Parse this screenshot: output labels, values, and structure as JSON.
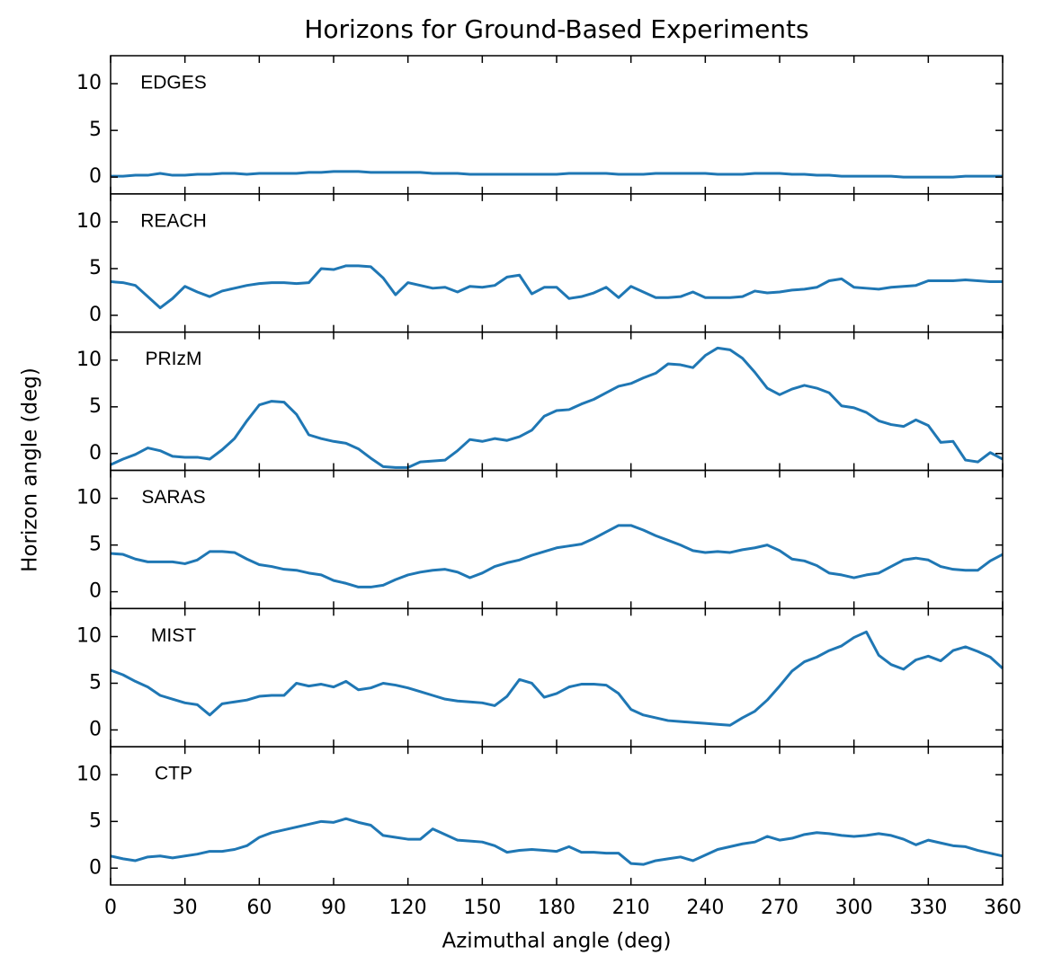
{
  "title": "Horizons for Ground-Based Experiments",
  "x_label": "Azimuthal angle (deg)",
  "y_label": "Horizon angle (deg)",
  "chart_data": [
    {
      "type": "line",
      "xlim": [
        0,
        360
      ],
      "ylim": [
        -1.8,
        13
      ],
      "xticks": [
        0,
        30,
        60,
        90,
        120,
        150,
        180,
        210,
        240,
        270,
        300,
        330,
        360
      ],
      "yticks": [
        0,
        5,
        10
      ],
      "x": [
        0,
        5,
        10,
        15,
        20,
        25,
        30,
        35,
        40,
        45,
        50,
        55,
        60,
        65,
        70,
        75,
        80,
        85,
        90,
        95,
        100,
        105,
        110,
        115,
        120,
        125,
        130,
        135,
        140,
        145,
        150,
        155,
        160,
        165,
        170,
        175,
        180,
        185,
        190,
        195,
        200,
        205,
        210,
        215,
        220,
        225,
        230,
        235,
        240,
        245,
        250,
        255,
        260,
        265,
        270,
        275,
        280,
        285,
        290,
        295,
        300,
        305,
        310,
        315,
        320,
        325,
        330,
        335,
        340,
        345,
        350,
        355,
        360
      ],
      "series": [
        {
          "name": "EDGES",
          "color": "#1f77b4",
          "values": [
            0.1,
            0.1,
            0.2,
            0.2,
            0.4,
            0.2,
            0.2,
            0.3,
            0.3,
            0.4,
            0.4,
            0.3,
            0.4,
            0.4,
            0.4,
            0.4,
            0.5,
            0.5,
            0.6,
            0.6,
            0.6,
            0.5,
            0.5,
            0.5,
            0.5,
            0.5,
            0.4,
            0.4,
            0.4,
            0.3,
            0.3,
            0.3,
            0.3,
            0.3,
            0.3,
            0.3,
            0.3,
            0.4,
            0.4,
            0.4,
            0.4,
            0.3,
            0.3,
            0.3,
            0.4,
            0.4,
            0.4,
            0.4,
            0.4,
            0.3,
            0.3,
            0.3,
            0.4,
            0.4,
            0.4,
            0.3,
            0.3,
            0.2,
            0.2,
            0.1,
            0.1,
            0.1,
            0.1,
            0.1,
            0.0,
            0.0,
            0.0,
            0.0,
            0.0,
            0.1,
            0.1,
            0.1,
            0.1
          ]
        }
      ]
    },
    {
      "type": "line",
      "xlim": [
        0,
        360
      ],
      "ylim": [
        -1.8,
        13
      ],
      "xticks": [
        0,
        30,
        60,
        90,
        120,
        150,
        180,
        210,
        240,
        270,
        300,
        330,
        360
      ],
      "yticks": [
        0,
        5,
        10
      ],
      "x": [
        0,
        5,
        10,
        15,
        20,
        25,
        30,
        35,
        40,
        45,
        50,
        55,
        60,
        65,
        70,
        75,
        80,
        85,
        90,
        95,
        100,
        105,
        110,
        115,
        120,
        125,
        130,
        135,
        140,
        145,
        150,
        155,
        160,
        165,
        170,
        175,
        180,
        185,
        190,
        195,
        200,
        205,
        210,
        215,
        220,
        225,
        230,
        235,
        240,
        245,
        250,
        255,
        260,
        265,
        270,
        275,
        280,
        285,
        290,
        295,
        300,
        305,
        310,
        315,
        320,
        325,
        330,
        335,
        340,
        345,
        350,
        355,
        360
      ],
      "series": [
        {
          "name": "REACH",
          "color": "#1f77b4",
          "values": [
            3.6,
            3.5,
            3.2,
            2.0,
            0.8,
            1.8,
            3.1,
            2.5,
            2.0,
            2.6,
            2.9,
            3.2,
            3.4,
            3.5,
            3.5,
            3.4,
            3.5,
            5.0,
            4.9,
            5.3,
            5.3,
            5.2,
            4.0,
            2.2,
            3.5,
            3.2,
            2.9,
            3.0,
            2.5,
            3.1,
            3.0,
            3.2,
            4.1,
            4.3,
            2.3,
            3.0,
            3.0,
            1.8,
            2.0,
            2.4,
            3.0,
            1.9,
            3.1,
            2.5,
            1.9,
            1.9,
            2.0,
            2.5,
            1.9,
            1.9,
            1.9,
            2.0,
            2.6,
            2.4,
            2.5,
            2.7,
            2.8,
            3.0,
            3.7,
            3.9,
            3.0,
            2.9,
            2.8,
            3.0,
            3.1,
            3.2,
            3.7,
            3.7,
            3.7,
            3.8,
            3.7,
            3.6,
            3.6
          ]
        }
      ]
    },
    {
      "type": "line",
      "xlim": [
        0,
        360
      ],
      "ylim": [
        -1.8,
        13
      ],
      "xticks": [
        0,
        30,
        60,
        90,
        120,
        150,
        180,
        210,
        240,
        270,
        300,
        330,
        360
      ],
      "yticks": [
        0,
        5,
        10
      ],
      "x": [
        0,
        5,
        10,
        15,
        20,
        25,
        30,
        35,
        40,
        45,
        50,
        55,
        60,
        65,
        70,
        75,
        80,
        85,
        90,
        95,
        100,
        105,
        110,
        115,
        120,
        125,
        130,
        135,
        140,
        145,
        150,
        155,
        160,
        165,
        170,
        175,
        180,
        185,
        190,
        195,
        200,
        205,
        210,
        215,
        220,
        225,
        230,
        235,
        240,
        245,
        250,
        255,
        260,
        265,
        270,
        275,
        280,
        285,
        290,
        295,
        300,
        305,
        310,
        315,
        320,
        325,
        330,
        335,
        340,
        345,
        350,
        355,
        360
      ],
      "series": [
        {
          "name": "PRIzM",
          "color": "#1f77b4",
          "values": [
            -1.2,
            -0.6,
            -0.1,
            0.6,
            0.3,
            -0.3,
            -0.4,
            -0.4,
            -0.6,
            0.4,
            1.6,
            3.5,
            5.2,
            5.6,
            5.5,
            4.2,
            2.0,
            1.6,
            1.3,
            1.1,
            0.5,
            -0.5,
            -1.4,
            -1.5,
            -1.5,
            -0.9,
            -0.8,
            -0.7,
            0.3,
            1.5,
            1.3,
            1.6,
            1.4,
            1.8,
            2.5,
            4.0,
            4.6,
            4.7,
            5.3,
            5.8,
            6.5,
            7.2,
            7.5,
            8.1,
            8.6,
            9.6,
            9.5,
            9.2,
            10.5,
            11.3,
            11.1,
            10.2,
            8.7,
            7.0,
            6.3,
            6.9,
            7.3,
            7.0,
            6.5,
            5.1,
            4.9,
            4.4,
            3.5,
            3.1,
            2.9,
            3.6,
            3.0,
            1.2,
            1.3,
            -0.7,
            -0.9,
            0.1,
            -0.6
          ]
        }
      ]
    },
    {
      "type": "line",
      "xlim": [
        0,
        360
      ],
      "ylim": [
        -1.8,
        13
      ],
      "xticks": [
        0,
        30,
        60,
        90,
        120,
        150,
        180,
        210,
        240,
        270,
        300,
        330,
        360
      ],
      "yticks": [
        0,
        5,
        10
      ],
      "x": [
        0,
        5,
        10,
        15,
        20,
        25,
        30,
        35,
        40,
        45,
        50,
        55,
        60,
        65,
        70,
        75,
        80,
        85,
        90,
        95,
        100,
        105,
        110,
        115,
        120,
        125,
        130,
        135,
        140,
        145,
        150,
        155,
        160,
        165,
        170,
        175,
        180,
        185,
        190,
        195,
        200,
        205,
        210,
        215,
        220,
        225,
        230,
        235,
        240,
        245,
        250,
        255,
        260,
        265,
        270,
        275,
        280,
        285,
        290,
        295,
        300,
        305,
        310,
        315,
        320,
        325,
        330,
        335,
        340,
        345,
        350,
        355,
        360
      ],
      "series": [
        {
          "name": "SARAS",
          "color": "#1f77b4",
          "values": [
            4.1,
            4.0,
            3.5,
            3.2,
            3.2,
            3.2,
            3.0,
            3.4,
            4.3,
            4.3,
            4.2,
            3.5,
            2.9,
            2.7,
            2.4,
            2.3,
            2.0,
            1.8,
            1.2,
            0.9,
            0.5,
            0.5,
            0.7,
            1.3,
            1.8,
            2.1,
            2.3,
            2.4,
            2.1,
            1.5,
            2.0,
            2.7,
            3.1,
            3.4,
            3.9,
            4.3,
            4.7,
            4.9,
            5.1,
            5.7,
            6.4,
            7.1,
            7.1,
            6.6,
            6.0,
            5.5,
            5.0,
            4.4,
            4.2,
            4.3,
            4.2,
            4.5,
            4.7,
            5.0,
            4.4,
            3.5,
            3.3,
            2.8,
            2.0,
            1.8,
            1.5,
            1.8,
            2.0,
            2.7,
            3.4,
            3.6,
            3.4,
            2.7,
            2.4,
            2.3,
            2.3,
            3.3,
            4.0
          ]
        }
      ]
    },
    {
      "type": "line",
      "xlim": [
        0,
        360
      ],
      "ylim": [
        -1.8,
        13
      ],
      "xticks": [
        0,
        30,
        60,
        90,
        120,
        150,
        180,
        210,
        240,
        270,
        300,
        330,
        360
      ],
      "yticks": [
        0,
        5,
        10
      ],
      "x": [
        0,
        5,
        10,
        15,
        20,
        25,
        30,
        35,
        40,
        45,
        50,
        55,
        60,
        65,
        70,
        75,
        80,
        85,
        90,
        95,
        100,
        105,
        110,
        115,
        120,
        125,
        130,
        135,
        140,
        145,
        150,
        155,
        160,
        165,
        170,
        175,
        180,
        185,
        190,
        195,
        200,
        205,
        210,
        215,
        220,
        225,
        230,
        235,
        240,
        245,
        250,
        255,
        260,
        265,
        270,
        275,
        280,
        285,
        290,
        295,
        300,
        305,
        310,
        315,
        320,
        325,
        330,
        335,
        340,
        345,
        350,
        355,
        360
      ],
      "series": [
        {
          "name": "MIST",
          "color": "#1f77b4",
          "values": [
            6.4,
            5.9,
            5.2,
            4.6,
            3.7,
            3.3,
            2.9,
            2.7,
            1.6,
            2.8,
            3.0,
            3.2,
            3.6,
            3.7,
            3.7,
            5.0,
            4.7,
            4.9,
            4.6,
            5.2,
            4.3,
            4.5,
            5.0,
            4.8,
            4.5,
            4.1,
            3.7,
            3.3,
            3.1,
            3.0,
            2.9,
            2.6,
            3.6,
            5.4,
            5.0,
            3.5,
            3.9,
            4.6,
            4.9,
            4.9,
            4.8,
            3.9,
            2.2,
            1.6,
            1.3,
            1.0,
            0.9,
            0.8,
            0.7,
            0.6,
            0.5,
            1.3,
            2.0,
            3.2,
            4.7,
            6.3,
            7.3,
            7.8,
            8.5,
            9.0,
            9.9,
            10.5,
            8.0,
            7.0,
            6.5,
            7.5,
            7.9,
            7.4,
            8.5,
            8.9,
            8.4,
            7.8,
            6.6
          ]
        }
      ]
    },
    {
      "type": "line",
      "xlim": [
        0,
        360
      ],
      "ylim": [
        -1.8,
        13
      ],
      "xticks": [
        0,
        30,
        60,
        90,
        120,
        150,
        180,
        210,
        240,
        270,
        300,
        330,
        360
      ],
      "yticks": [
        0,
        5,
        10
      ],
      "x": [
        0,
        5,
        10,
        15,
        20,
        25,
        30,
        35,
        40,
        45,
        50,
        55,
        60,
        65,
        70,
        75,
        80,
        85,
        90,
        95,
        100,
        105,
        110,
        115,
        120,
        125,
        130,
        135,
        140,
        145,
        150,
        155,
        160,
        165,
        170,
        175,
        180,
        185,
        190,
        195,
        200,
        205,
        210,
        215,
        220,
        225,
        230,
        235,
        240,
        245,
        250,
        255,
        260,
        265,
        270,
        275,
        280,
        285,
        290,
        295,
        300,
        305,
        310,
        315,
        320,
        325,
        330,
        335,
        340,
        345,
        350,
        355,
        360
      ],
      "series": [
        {
          "name": "CTP",
          "color": "#1f77b4",
          "values": [
            1.3,
            1.0,
            0.8,
            1.2,
            1.3,
            1.1,
            1.3,
            1.5,
            1.8,
            1.8,
            2.0,
            2.4,
            3.3,
            3.8,
            4.1,
            4.4,
            4.7,
            5.0,
            4.9,
            5.3,
            4.9,
            4.6,
            3.5,
            3.3,
            3.1,
            3.1,
            4.2,
            3.6,
            3.0,
            2.9,
            2.8,
            2.4,
            1.7,
            1.9,
            2.0,
            1.9,
            1.8,
            2.3,
            1.7,
            1.7,
            1.6,
            1.6,
            0.5,
            0.4,
            0.8,
            1.0,
            1.2,
            0.8,
            1.4,
            2.0,
            2.3,
            2.6,
            2.8,
            3.4,
            3.0,
            3.2,
            3.6,
            3.8,
            3.7,
            3.5,
            3.4,
            3.5,
            3.7,
            3.5,
            3.1,
            2.5,
            3.0,
            2.7,
            2.4,
            2.3,
            1.9,
            1.6,
            1.3
          ]
        }
      ]
    }
  ]
}
